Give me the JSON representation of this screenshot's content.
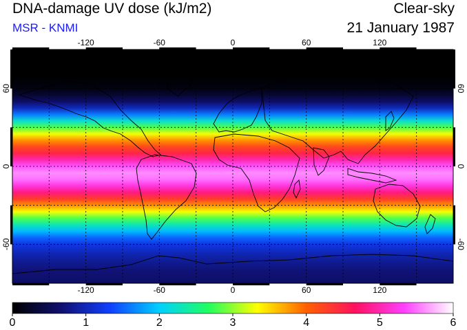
{
  "header": {
    "title": "DNA-damage UV dose (kJ/m2)",
    "source": "MSR - KNMI",
    "condition": "Clear-sky",
    "date": "21 January 1987"
  },
  "map": {
    "projection": "equirectangular",
    "lon_range": [
      -180,
      180
    ],
    "lat_range": [
      -90,
      90
    ],
    "lon_ticks": [
      -120,
      -60,
      0,
      60,
      120
    ],
    "lon_tick_labels": [
      "-120",
      "-60",
      "0",
      "60",
      "120"
    ],
    "lat_ticks": [
      60,
      0,
      -60
    ],
    "lat_tick_labels": [
      "60",
      "0",
      "-60"
    ],
    "grid": "dotted every 30 degrees",
    "dose_by_latitude": [
      {
        "lat": 90,
        "dose": 0.0
      },
      {
        "lat": 70,
        "dose": 0.0
      },
      {
        "lat": 60,
        "dose": 0.1
      },
      {
        "lat": 55,
        "dose": 0.3
      },
      {
        "lat": 50,
        "dose": 0.6
      },
      {
        "lat": 45,
        "dose": 1.0
      },
      {
        "lat": 40,
        "dose": 1.6
      },
      {
        "lat": 35,
        "dose": 2.2
      },
      {
        "lat": 30,
        "dose": 2.8
      },
      {
        "lat": 25,
        "dose": 3.3
      },
      {
        "lat": 20,
        "dose": 3.8
      },
      {
        "lat": 15,
        "dose": 4.2
      },
      {
        "lat": 10,
        "dose": 4.5
      },
      {
        "lat": 5,
        "dose": 5.0
      },
      {
        "lat": 0,
        "dose": 5.4
      },
      {
        "lat": -5,
        "dose": 5.6
      },
      {
        "lat": -10,
        "dose": 5.5
      },
      {
        "lat": -15,
        "dose": 5.2
      },
      {
        "lat": -20,
        "dose": 4.8
      },
      {
        "lat": -25,
        "dose": 4.3
      },
      {
        "lat": -30,
        "dose": 3.8
      },
      {
        "lat": -35,
        "dose": 3.3
      },
      {
        "lat": -40,
        "dose": 2.8
      },
      {
        "lat": -45,
        "dose": 2.3
      },
      {
        "lat": -50,
        "dose": 1.9
      },
      {
        "lat": -55,
        "dose": 1.5
      },
      {
        "lat": -60,
        "dose": 1.2
      },
      {
        "lat": -70,
        "dose": 0.9
      },
      {
        "lat": -80,
        "dose": 0.7
      },
      {
        "lat": -90,
        "dose": 0.6
      }
    ]
  },
  "colorbar": {
    "min": 0,
    "max": 6,
    "tick_labels": [
      "0",
      "1",
      "2",
      "3",
      "4",
      "5",
      "6"
    ],
    "colors": [
      "#000000",
      "#101070",
      "#1040ff",
      "#00d0ff",
      "#20ff60",
      "#ffff00",
      "#ff6000",
      "#ff1060",
      "#ff40ff",
      "#ffffff"
    ]
  }
}
